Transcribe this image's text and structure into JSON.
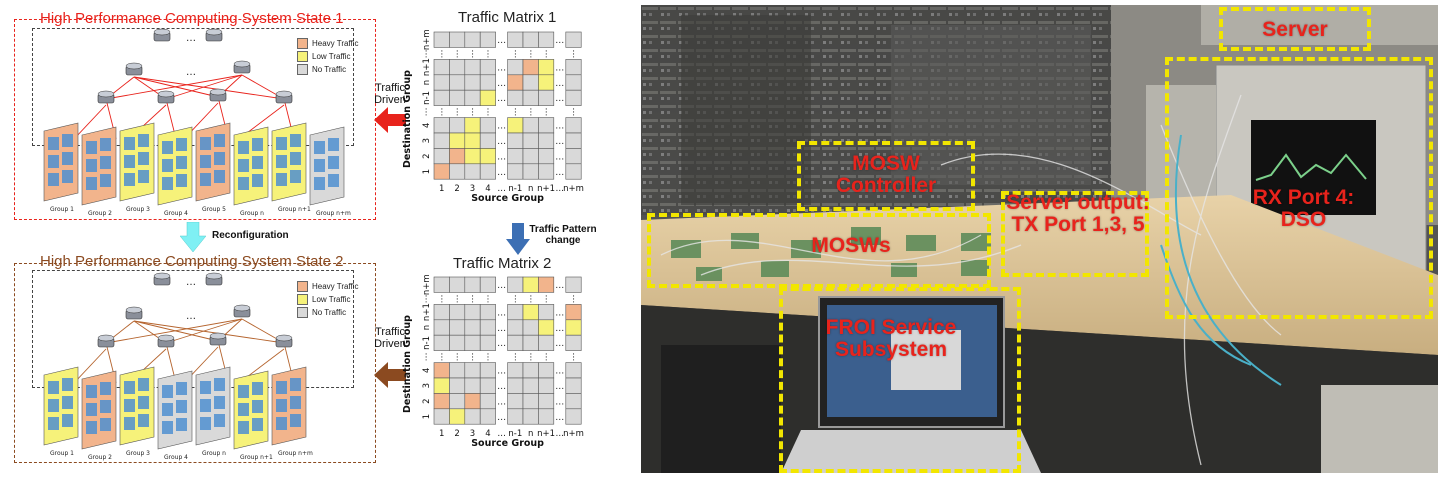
{
  "left": {
    "state1": {
      "title": "High Performance Computing System State 1",
      "color": "#e8231c"
    },
    "state2": {
      "title": "High Performance Computing System State 2",
      "color": "#8b4a20"
    },
    "legend": [
      {
        "label": "Heavy Traffic",
        "color": "#f2b48c"
      },
      {
        "label": "Low Traffic",
        "color": "#f6f27a"
      },
      {
        "label": "No Traffic",
        "color": "#d9d9d9"
      }
    ],
    "group_labels_1": [
      "Group 1",
      "Group 2",
      "Group 3",
      "Group 4",
      "Group 5",
      "Group n",
      "Group n+1",
      "Group n+m"
    ],
    "group_labels_2": [
      "Group 1",
      "Group 2",
      "Group 3",
      "Group 4",
      "Group n",
      "Group n+1",
      "Group n+m"
    ],
    "traffic_driven": "Traffic Driven",
    "reconfiguration": "Reconfiguration",
    "traffic_pattern_change": "Traffic Pattern change"
  },
  "matrix1": {
    "title": "Traffic Matrix 1",
    "xlabel": "Source Group",
    "ylabel": "Destination Group",
    "x_ticks": [
      "1",
      "2",
      "3",
      "4",
      "…",
      "n-1",
      "n",
      "n+1",
      "…",
      "n+m"
    ],
    "y_ticks": [
      "1",
      "2",
      "3",
      "4",
      "⋮",
      "n-1",
      "n",
      "n+1",
      "⋮",
      "n+m"
    ]
  },
  "matrix2": {
    "title": "Traffic Matrix 2",
    "xlabel": "Source Group",
    "ylabel": "Destination Group",
    "x_ticks": [
      "1",
      "2",
      "3",
      "4",
      "…",
      "n-1",
      "n",
      "n+1",
      "…",
      "n+m"
    ],
    "y_ticks": [
      "1",
      "2",
      "3",
      "4",
      "⋮",
      "n-1",
      "n",
      "n+1",
      "⋮",
      "n+m"
    ]
  },
  "photo": {
    "labels": {
      "server": "Server",
      "mosw_controller": "MOSW Controller",
      "mosws": "MOSWs",
      "server_output": "Server output: TX Port 1,3, 5",
      "rx_port": "RX Port 4: DSO",
      "froi": "FROI Service Subsystem"
    },
    "label_color": "#e8231c",
    "box_color": "#f2e600"
  }
}
